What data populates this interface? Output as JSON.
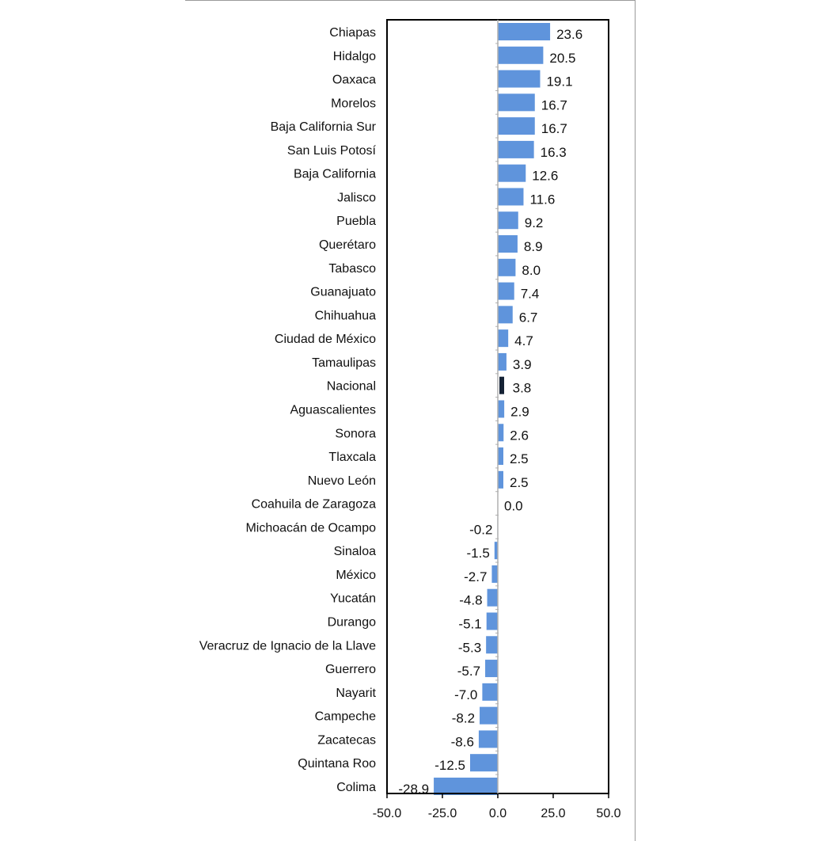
{
  "chart_data": {
    "type": "bar",
    "orientation": "horizontal",
    "categories": [
      "Chiapas",
      "Hidalgo",
      "Oaxaca",
      "Morelos",
      "Baja California Sur",
      "San Luis Potosí",
      "Baja California",
      "Jalisco",
      "Puebla",
      "Querétaro",
      "Tabasco",
      "Guanajuato",
      "Chihuahua",
      "Ciudad de México",
      "Tamaulipas",
      "Nacional",
      "Aguascalientes",
      "Sonora",
      "Tlaxcala",
      "Nuevo León",
      "Coahuila de Zaragoza",
      "Michoacán de Ocampo",
      "Sinaloa",
      "México",
      "Yucatán",
      "Durango",
      "Veracruz de Ignacio de la Llave",
      "Guerrero",
      "Nayarit",
      "Campeche",
      "Zacatecas",
      "Quintana Roo",
      "Colima"
    ],
    "values": [
      23.6,
      20.5,
      19.1,
      16.7,
      16.7,
      16.3,
      12.6,
      11.6,
      9.2,
      8.9,
      8.0,
      7.4,
      6.7,
      4.7,
      3.9,
      3.8,
      2.9,
      2.6,
      2.5,
      2.5,
      0.0,
      -0.2,
      -1.5,
      -2.7,
      -4.8,
      -5.1,
      -5.3,
      -5.7,
      -7.0,
      -8.2,
      -8.6,
      -12.5,
      -28.9
    ],
    "value_labels": [
      "23.6",
      "20.5",
      "19.1",
      "16.7",
      "16.7",
      "16.3",
      "12.6",
      "11.6",
      "9.2",
      "8.9",
      "8.0",
      "7.4",
      "6.7",
      "4.7",
      "3.9",
      "3.8",
      "2.9",
      "2.6",
      "2.5",
      "2.5",
      "0.0",
      "-0.2",
      "-1.5",
      "-2.7",
      "-4.8",
      "-5.1",
      "-5.3",
      "-5.7",
      "-7.0",
      "-8.2",
      "-8.6",
      "-12.5",
      "-28.9"
    ],
    "highlight_category": "Nacional",
    "xlim": [
      -50,
      50
    ],
    "xticks": [
      "-50.0",
      "-25.0",
      "0.0",
      "25.0",
      "50.0"
    ],
    "title": "",
    "xlabel": "",
    "ylabel": "",
    "grid": false,
    "colors": {
      "bar": "#5f94dc",
      "highlight": "#152235",
      "axis": "#000000",
      "text": "#111111"
    }
  }
}
